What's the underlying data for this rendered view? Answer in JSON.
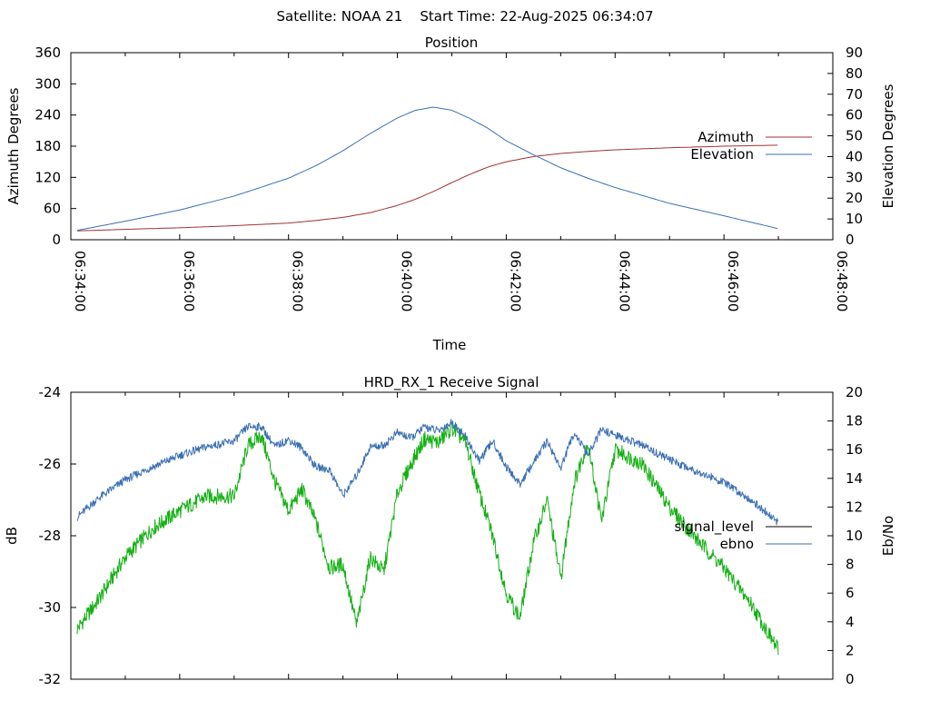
{
  "header": {
    "title": "Satellite: NOAA 21    Start Time: 22-Aug-2025 06:34:07"
  },
  "colors": {
    "azimuth": "#a03030",
    "elevation": "#3b6fb3",
    "signal_level": "#000000",
    "signal_trace": "#12b012",
    "ebno": "#3b6fb3",
    "axes": "#000000",
    "background": "#ffffff"
  },
  "chart_data": [
    {
      "type": "line",
      "title": "Position",
      "xlabel": "Time",
      "ylabel": "Azimuth Degrees",
      "y2label": "Elevation Degrees",
      "xlim": [
        "06:34:00",
        "06:48:00"
      ],
      "xticks": [
        "06:34:00",
        "06:36:00",
        "06:38:00",
        "06:40:00",
        "06:42:00",
        "06:44:00",
        "06:46:00",
        "06:48:00"
      ],
      "ylim": [
        0,
        360
      ],
      "yticks": [
        "0",
        "60",
        "120",
        "180",
        "240",
        "300",
        "360"
      ],
      "y2lim": [
        0,
        90
      ],
      "y2ticks": [
        "0",
        "10",
        "20",
        "30",
        "40",
        "50",
        "60",
        "70",
        "80",
        "90"
      ],
      "legend_position": "right",
      "grid": false,
      "series": [
        {
          "name": "Azimuth",
          "axis": "y",
          "x": [
            "06:34:07",
            "06:35:00",
            "06:36:00",
            "06:37:00",
            "06:38:00",
            "06:38:30",
            "06:39:00",
            "06:39:30",
            "06:40:00",
            "06:40:20",
            "06:40:40",
            "06:41:00",
            "06:41:20",
            "06:41:40",
            "06:42:00",
            "06:42:30",
            "06:43:00",
            "06:43:30",
            "06:44:00",
            "06:45:00",
            "06:46:00",
            "06:47:00"
          ],
          "values": [
            17,
            20,
            23,
            27,
            32,
            37,
            43,
            52,
            66,
            78,
            93,
            110,
            126,
            140,
            150,
            160,
            166,
            170,
            173,
            177,
            180,
            182
          ]
        },
        {
          "name": "Elevation",
          "axis": "y2",
          "x": [
            "06:34:07",
            "06:35:00",
            "06:36:00",
            "06:37:00",
            "06:38:00",
            "06:38:30",
            "06:39:00",
            "06:39:30",
            "06:40:00",
            "06:40:20",
            "06:40:40",
            "06:41:00",
            "06:41:20",
            "06:41:40",
            "06:42:00",
            "06:42:30",
            "06:43:00",
            "06:43:30",
            "06:44:00",
            "06:45:00",
            "06:46:00",
            "06:47:00"
          ],
          "values": [
            4.5,
            8.9,
            14.3,
            21.0,
            29.6,
            35.6,
            42.8,
            51.1,
            58.6,
            62.3,
            63.8,
            62.3,
            58.3,
            53.6,
            47.6,
            40.9,
            34.6,
            29.6,
            25.1,
            17.5,
            11.5,
            5.3
          ]
        }
      ]
    },
    {
      "type": "line",
      "title": "HRD_RX_1 Receive Signal",
      "ylabel": "dB",
      "y2label": "Eb/No",
      "xlim": [
        "06:34:00",
        "06:48:00"
      ],
      "ylim": [
        -32,
        -24
      ],
      "yticks": [
        "-32",
        "-30",
        "-28",
        "-26",
        "-24"
      ],
      "y2lim": [
        0,
        20
      ],
      "y2ticks": [
        "0",
        "2",
        "4",
        "6",
        "8",
        "10",
        "12",
        "14",
        "16",
        "18",
        "20"
      ],
      "legend_position": "right",
      "grid": false,
      "series": [
        {
          "name": "signal_level",
          "axis": "y",
          "color_key": "signal_trace",
          "x": [
            "06:34:07",
            "06:34:30",
            "06:35:00",
            "06:35:30",
            "06:36:00",
            "06:36:30",
            "06:37:00",
            "06:37:15",
            "06:37:30",
            "06:37:45",
            "06:38:00",
            "06:38:15",
            "06:38:30",
            "06:38:45",
            "06:39:00",
            "06:39:15",
            "06:39:30",
            "06:39:45",
            "06:40:00",
            "06:40:15",
            "06:40:30",
            "06:40:45",
            "06:41:00",
            "06:41:15",
            "06:41:30",
            "06:41:45",
            "06:42:00",
            "06:42:15",
            "06:42:30",
            "06:42:45",
            "06:43:00",
            "06:43:15",
            "06:43:30",
            "06:43:45",
            "06:44:00",
            "06:44:30",
            "06:45:00",
            "06:45:30",
            "06:46:00",
            "06:46:30",
            "06:47:00"
          ],
          "values": [
            -30.6,
            -29.8,
            -28.6,
            -27.8,
            -27.3,
            -26.9,
            -26.9,
            -25.5,
            -25.2,
            -26.5,
            -27.3,
            -26.7,
            -27.6,
            -28.9,
            -28.8,
            -30.5,
            -28.6,
            -29.0,
            -26.8,
            -26.0,
            -25.3,
            -25.4,
            -25.0,
            -25.4,
            -26.8,
            -28.0,
            -29.6,
            -30.3,
            -28.2,
            -27.0,
            -29.2,
            -26.5,
            -25.4,
            -27.6,
            -25.6,
            -26.0,
            -27.2,
            -28.1,
            -28.9,
            -29.9,
            -31.2
          ]
        },
        {
          "name": "ebno",
          "axis": "y2",
          "color_key": "ebno",
          "x": [
            "06:34:07",
            "06:34:30",
            "06:35:00",
            "06:35:30",
            "06:36:00",
            "06:36:30",
            "06:37:00",
            "06:37:15",
            "06:37:30",
            "06:37:45",
            "06:38:00",
            "06:38:15",
            "06:38:30",
            "06:38:45",
            "06:39:00",
            "06:39:15",
            "06:39:30",
            "06:39:45",
            "06:40:00",
            "06:40:15",
            "06:40:30",
            "06:40:45",
            "06:41:00",
            "06:41:15",
            "06:41:30",
            "06:41:45",
            "06:42:00",
            "06:42:15",
            "06:42:30",
            "06:42:45",
            "06:43:00",
            "06:43:15",
            "06:43:30",
            "06:43:45",
            "06:44:00",
            "06:44:30",
            "06:45:00",
            "06:45:30",
            "06:46:00",
            "06:46:30",
            "06:47:00"
          ],
          "values": [
            11.3,
            12.6,
            13.9,
            14.8,
            15.6,
            16.2,
            16.6,
            17.6,
            17.6,
            16.2,
            16.7,
            16.1,
            14.8,
            14.6,
            12.8,
            14.2,
            16.2,
            16.3,
            17.2,
            16.8,
            17.6,
            17.3,
            17.9,
            16.9,
            15.2,
            16.6,
            14.8,
            13.6,
            15.1,
            16.6,
            14.7,
            17.2,
            15.6,
            17.4,
            17.0,
            16.3,
            15.3,
            14.5,
            13.7,
            12.5,
            10.9
          ]
        }
      ]
    }
  ]
}
